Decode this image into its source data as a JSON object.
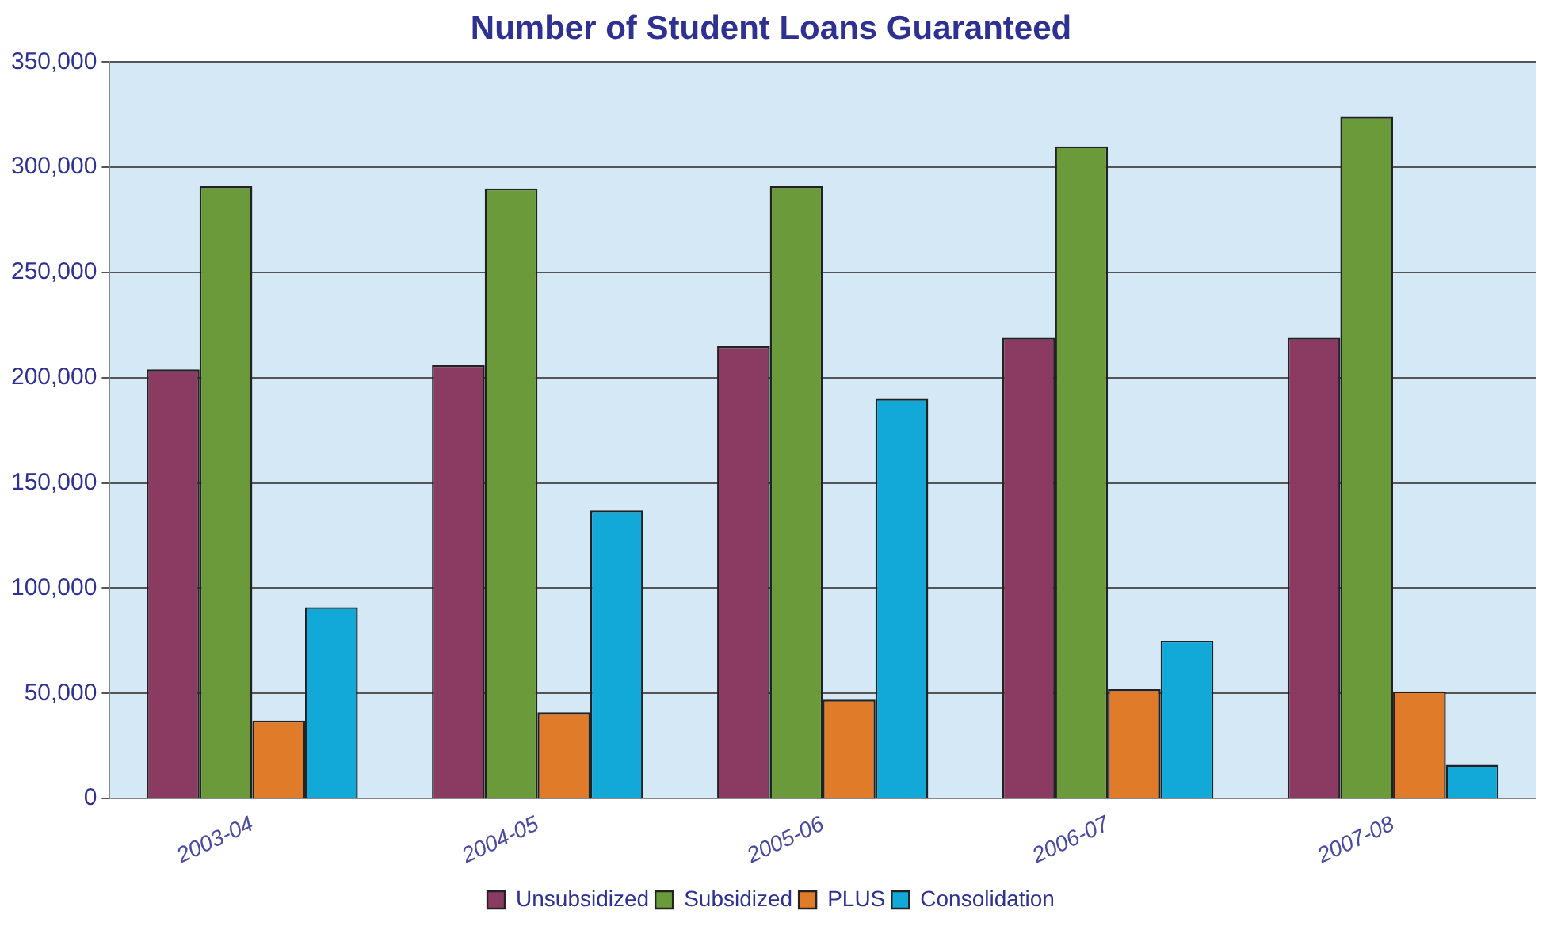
{
  "chart_data": {
    "type": "bar",
    "title": "Number of Student Loans Guaranteed",
    "categories": [
      "2003-04",
      "2004-05",
      "2005-06",
      "2006-07",
      "2007-08"
    ],
    "series": [
      {
        "name": "Unsubsidized",
        "color": "#8b3a62",
        "values": [
          204000,
          206000,
          215000,
          219000,
          219000
        ]
      },
      {
        "name": "Subsidized",
        "color": "#6a9a3a",
        "values": [
          291000,
          290000,
          291000,
          310000,
          324000
        ]
      },
      {
        "name": "PLUS",
        "color": "#e07b2a",
        "values": [
          37000,
          41000,
          47000,
          52000,
          51000
        ]
      },
      {
        "name": "Consolidation",
        "color": "#12a8d8",
        "values": [
          91000,
          137000,
          190000,
          75000,
          16000
        ]
      }
    ],
    "ylim": [
      0,
      350000
    ],
    "yticks": [
      0,
      {
        "value": 50000,
        "label": "50,000"
      },
      {
        "value": 100000,
        "label": "100,000"
      },
      {
        "value": 150000,
        "label": "150,000"
      },
      {
        "value": 200000,
        "label": "200,000"
      },
      {
        "value": 250000,
        "label": "250,000"
      },
      {
        "value": 300000,
        "label": "300,000"
      },
      {
        "value": 350000,
        "label": "350,000"
      }
    ],
    "grid": "y",
    "legend": "bottom"
  }
}
